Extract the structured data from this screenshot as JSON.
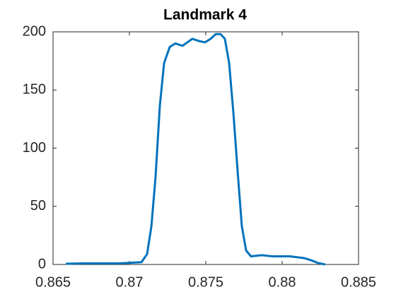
{
  "chart_data": {
    "type": "line",
    "title": "Landmark 4",
    "x": [
      0.86583,
      0.86708,
      0.8694,
      0.87079,
      0.87116,
      0.87144,
      0.87171,
      0.87199,
      0.87227,
      0.87264,
      0.87301,
      0.87347,
      0.8738,
      0.87412,
      0.87458,
      0.87495,
      0.87532,
      0.87565,
      0.87597,
      0.87625,
      0.87653,
      0.87681,
      0.87708,
      0.87736,
      0.87764,
      0.87796,
      0.87866,
      0.87935,
      0.88051,
      0.88144,
      0.8819,
      0.88236,
      0.88282
    ],
    "series": [
      {
        "color": "#0072bd",
        "values": [
          0.6,
          1,
          1,
          2,
          9,
          33,
          75,
          136,
          173,
          187,
          190,
          188,
          191,
          194,
          192,
          191,
          194,
          198,
          198,
          194,
          173,
          130,
          81,
          33,
          12,
          7,
          8,
          7,
          7,
          5.5,
          3.6,
          1.2,
          0
        ]
      }
    ],
    "xlim": [
      0.865,
      0.885
    ],
    "xticks": [
      0.865,
      0.87,
      0.875,
      0.88,
      0.885
    ],
    "ylim": [
      0,
      200
    ],
    "yticks": [
      0,
      50,
      100,
      150,
      200
    ]
  }
}
